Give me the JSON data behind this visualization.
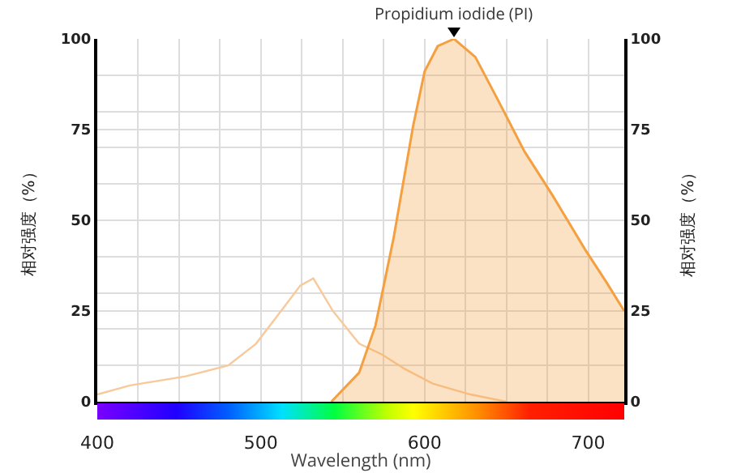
{
  "chart_data": {
    "type": "line",
    "xlabel": "Wavelength (nm)",
    "ylabel": "相对强度（%）",
    "y2label": "相对强度（%）",
    "x": [
      400,
      420,
      454,
      480,
      497,
      514,
      524,
      532,
      544,
      560,
      574,
      588,
      605,
      628,
      650
    ],
    "xlim": [
      400,
      722
    ],
    "xticks": [
      400,
      500,
      600,
      700
    ],
    "ylim": [
      0,
      100
    ],
    "yticks": [
      0,
      25,
      50,
      75,
      100
    ],
    "y2lim": [
      0,
      100
    ],
    "y2ticks": [
      0,
      25,
      50,
      75,
      100
    ],
    "series": [
      {
        "color": "#f8c99a",
        "values": [
          2,
          4.5,
          7,
          10,
          16,
          26,
          32,
          34,
          25,
          16,
          13,
          9,
          5,
          2,
          0
        ]
      },
      {
        "type": "area",
        "color": "#f5a040",
        "x": [
          543,
          560,
          570,
          581,
          593,
          600,
          608,
          618,
          631,
          645,
          661,
          678,
          698,
          711,
          722
        ],
        "values": [
          0,
          8,
          21,
          45,
          76,
          91,
          98,
          100,
          95,
          83,
          69,
          57,
          42,
          33,
          25
        ]
      }
    ],
    "annotations": [
      {
        "text": "Propidium iodide (PI)",
        "x": 618,
        "y": 100
      }
    ],
    "grid": true
  }
}
